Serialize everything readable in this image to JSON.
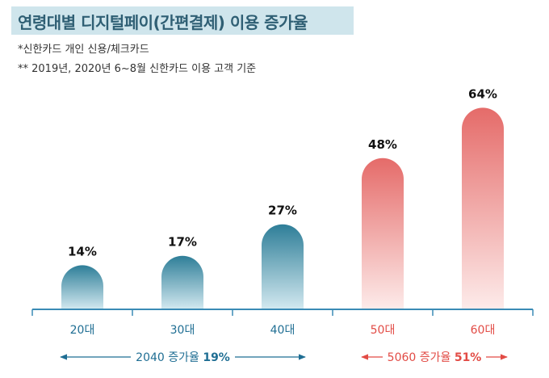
{
  "title": "연령대별 디지털페이(간편결제) 이용 증가율",
  "notes": [
    "*신한카드 개인 신용/체크카드",
    "** 2019년, 2020년 6~8월 신한카드 이용 고객 기준"
  ],
  "colors": {
    "young_bar": "#2e7e98",
    "old_bar": "#e56b69",
    "young_text": "#1f6e93",
    "old_text": "#e24b45",
    "axis": "#3a8bb5"
  },
  "chart_data": {
    "type": "bar",
    "categories": [
      "20대",
      "30대",
      "40대",
      "50대",
      "60대"
    ],
    "values": [
      14,
      17,
      27,
      48,
      64
    ],
    "value_labels": [
      "14%",
      "17%",
      "27%",
      "48%",
      "64%"
    ],
    "ylim": [
      0,
      70
    ],
    "groups": [
      {
        "label_prefix": "2040 증가율 ",
        "label_value": "19%",
        "categories": [
          "20대",
          "30대",
          "40대"
        ]
      },
      {
        "label_prefix": "5060 증가율 ",
        "label_value": "51%",
        "categories": [
          "50대",
          "60대"
        ]
      }
    ]
  }
}
